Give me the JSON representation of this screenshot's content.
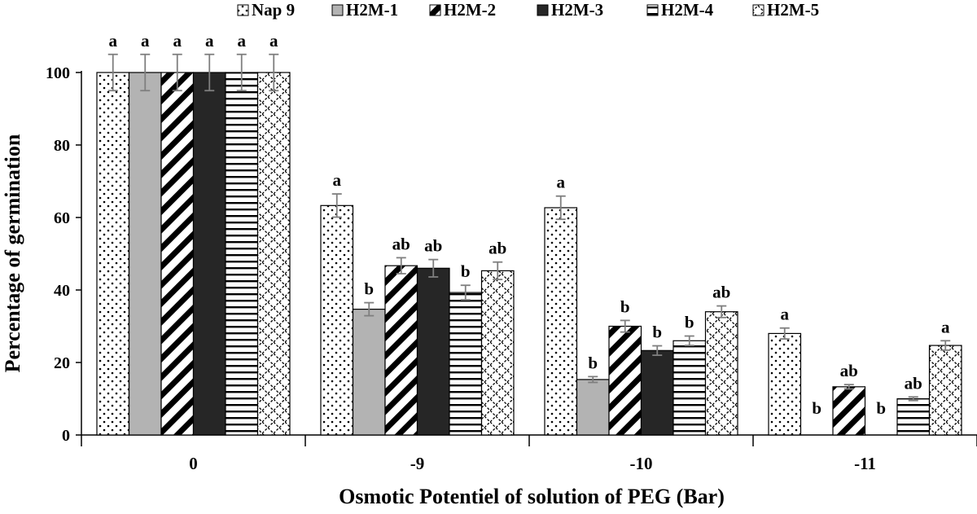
{
  "chart_data": {
    "type": "bar",
    "title": "",
    "xlabel": "Osmotic Potentiel of solution of PEG (Bar)",
    "ylabel": "Percentage of germination",
    "ylim": [
      0,
      100
    ],
    "yticks": [
      "0",
      "20",
      "40",
      "60",
      "80",
      "100"
    ],
    "legend_position": "top",
    "categories": [
      "0",
      "-9",
      "-10",
      "-11"
    ],
    "series": [
      {
        "name": "Nap 9",
        "pattern": "dots",
        "values": [
          100,
          63.3,
          62.7,
          28
        ],
        "errors": [
          5,
          3.2,
          3.2,
          1.5
        ],
        "labels": [
          "a",
          "a",
          "a",
          "a"
        ]
      },
      {
        "name": "H2M-1",
        "pattern": "gray",
        "values": [
          100,
          34.7,
          15.3,
          0
        ],
        "errors": [
          5,
          1.8,
          0.8,
          0
        ],
        "labels": [
          "a",
          "b",
          "b",
          "b"
        ]
      },
      {
        "name": "H2M-2",
        "pattern": "diagonal",
        "values": [
          100,
          46.7,
          30,
          13.3
        ],
        "errors": [
          5,
          2.2,
          1.6,
          0.6
        ],
        "labels": [
          "a",
          "ab",
          "b",
          "ab"
        ]
      },
      {
        "name": "H2M-3",
        "pattern": "black",
        "values": [
          100,
          46,
          23.3,
          0
        ],
        "errors": [
          5,
          2.4,
          1.3,
          0
        ],
        "labels": [
          "a",
          "ab",
          "b",
          "b"
        ]
      },
      {
        "name": "H2M-4",
        "pattern": "horizontal",
        "values": [
          100,
          39.3,
          26,
          10
        ],
        "errors": [
          5,
          2,
          1.3,
          0.5
        ],
        "labels": [
          "a",
          "b",
          "b",
          "ab"
        ]
      },
      {
        "name": "H2M-5",
        "pattern": "zigzag",
        "values": [
          100,
          45.3,
          34,
          24.7
        ],
        "errors": [
          5,
          2.4,
          1.6,
          1.3
        ],
        "labels": [
          "a",
          "ab",
          "ab",
          "a"
        ]
      }
    ],
    "colors": {
      "gray": "#b3b3b3",
      "black": "#262626",
      "error_bar": "#7f7f7f",
      "axis": "#000000"
    }
  }
}
